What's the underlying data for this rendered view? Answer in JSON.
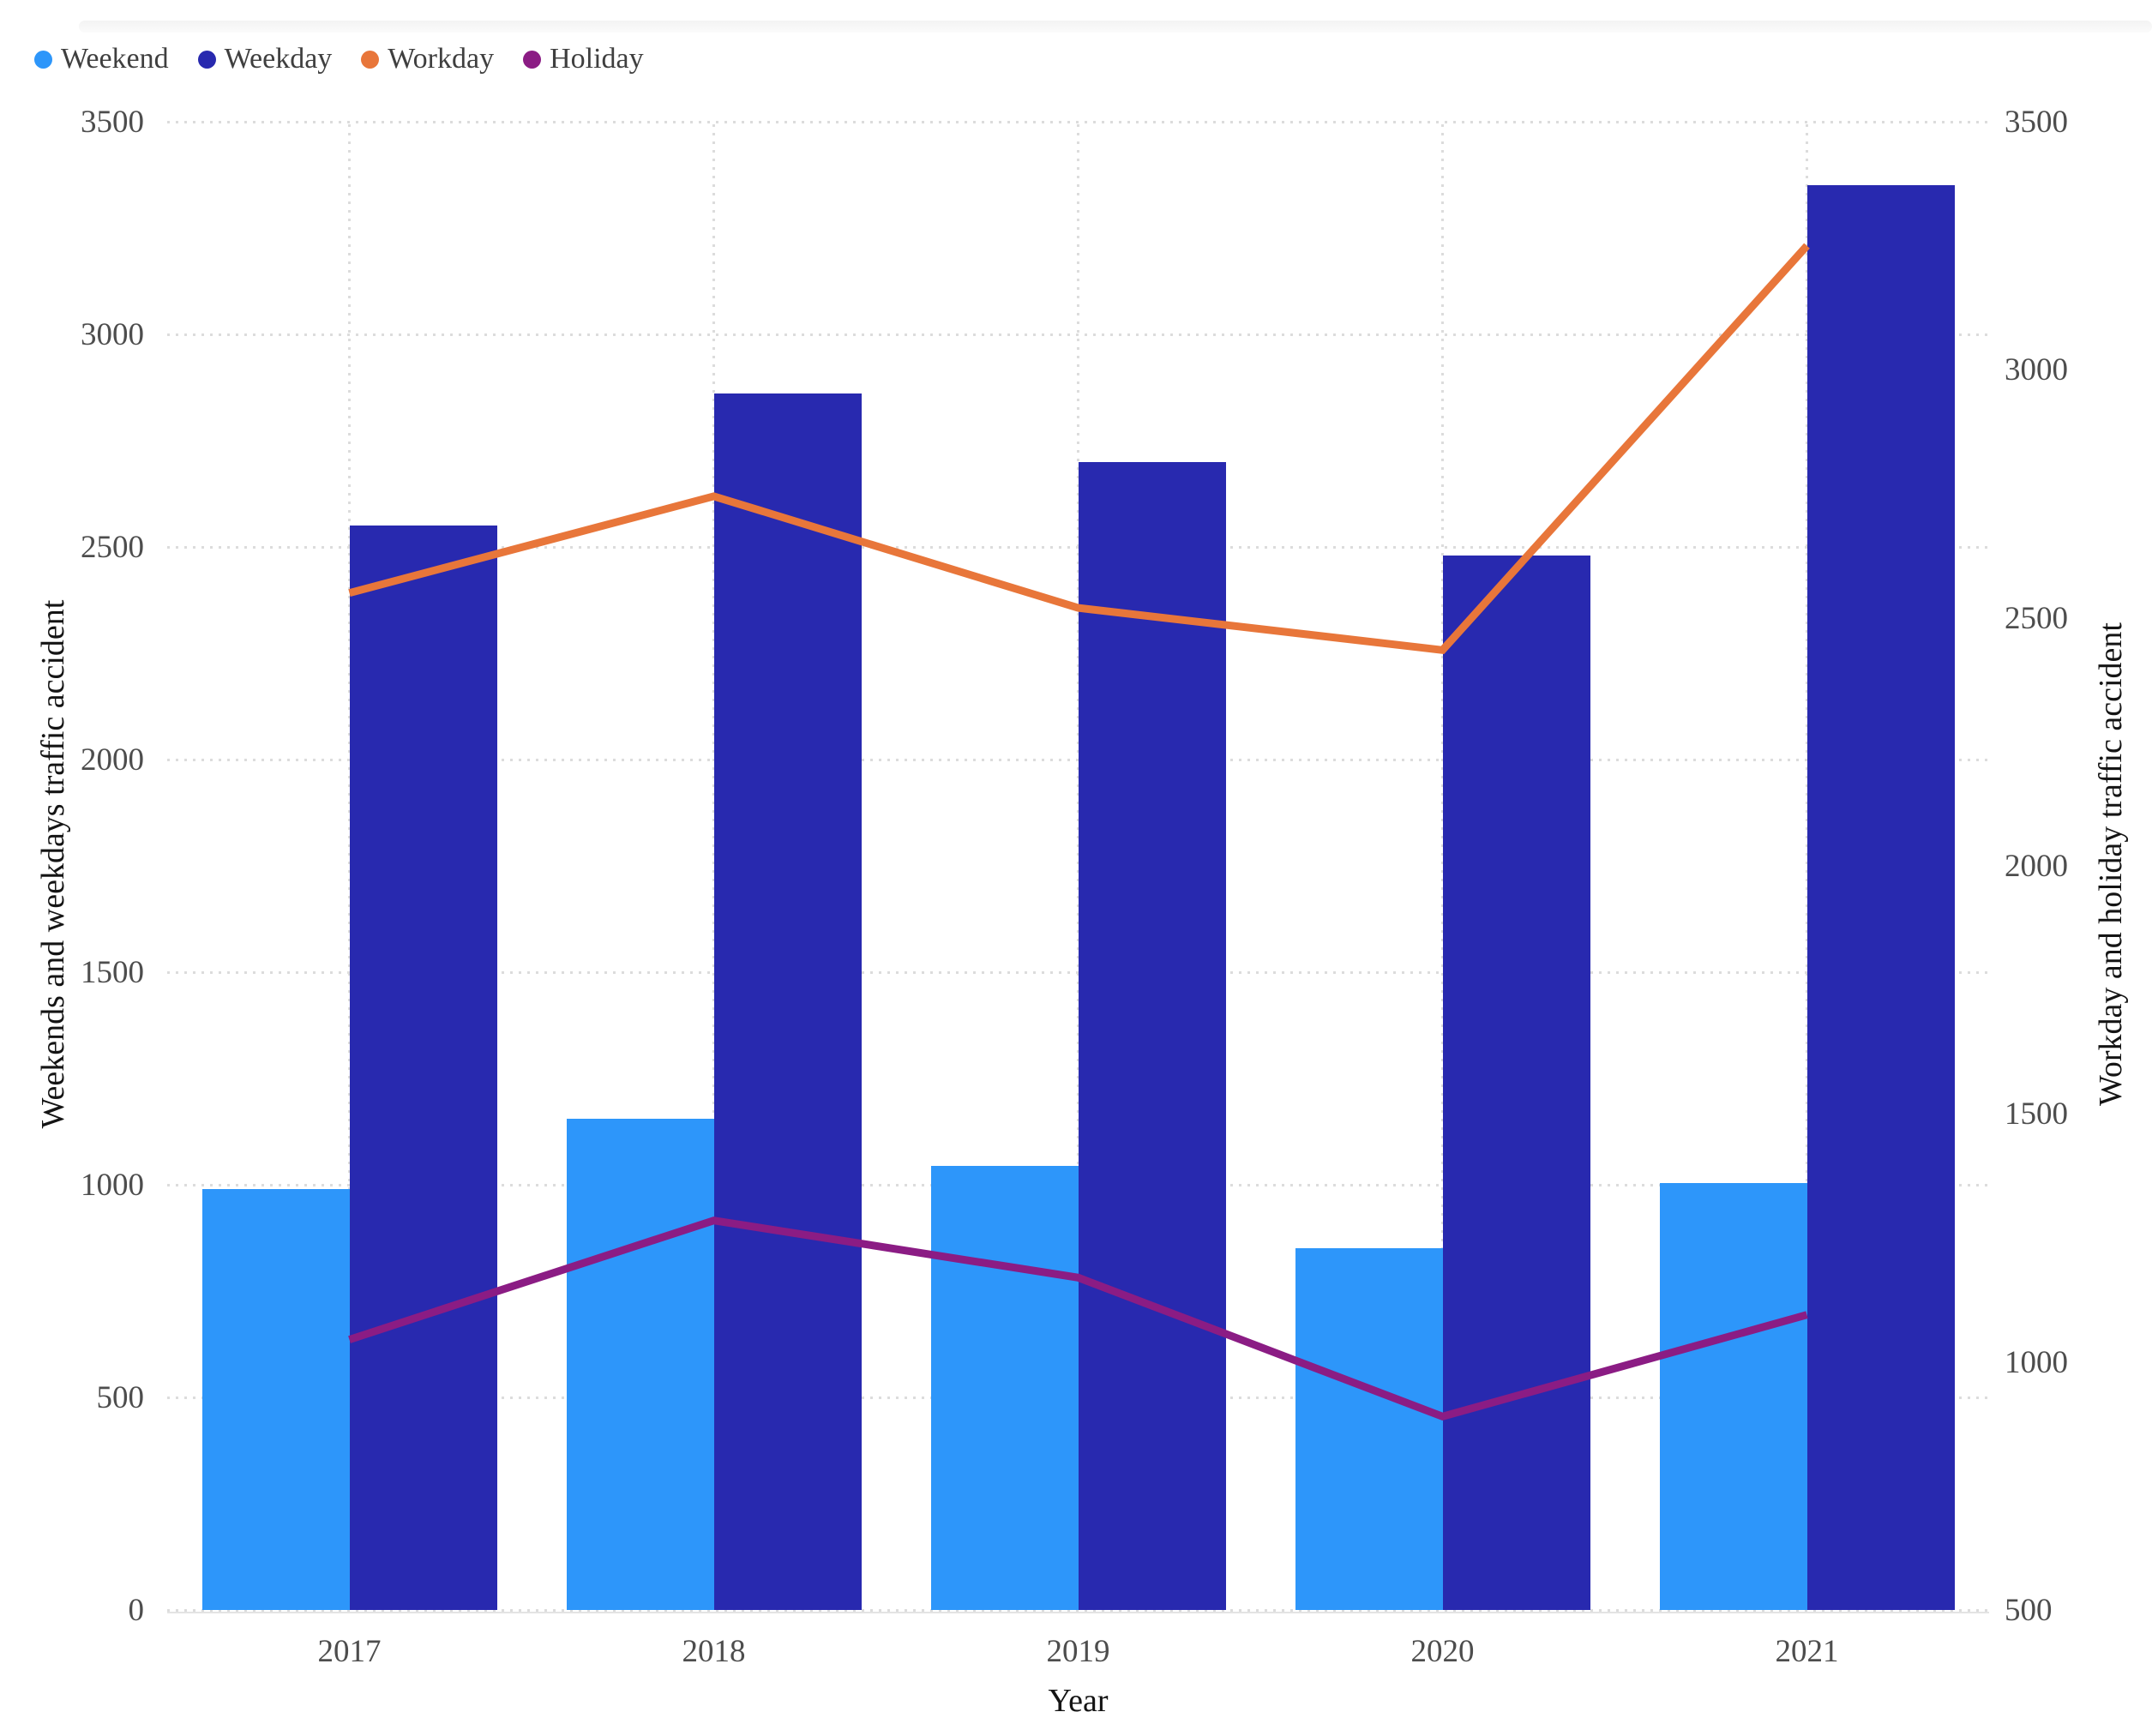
{
  "legend": {
    "items": [
      {
        "label": "Weekend",
        "color": "#2D96FA"
      },
      {
        "label": "Weekday",
        "color": "#2829AF"
      },
      {
        "label": "Workday",
        "color": "#E8763A"
      },
      {
        "label": "Holiday",
        "color": "#8B1C84"
      }
    ]
  },
  "chart_data": {
    "type": "bar",
    "subtype": "dual-axis bar+line combo",
    "categories": [
      "2017",
      "2018",
      "2019",
      "2020",
      "2021"
    ],
    "series": [
      {
        "name": "Weekend",
        "type": "bar",
        "axis": "left",
        "color": "#2D96FA",
        "values": [
          990,
          1155,
          1045,
          850,
          1005
        ]
      },
      {
        "name": "Weekday",
        "type": "bar",
        "axis": "left",
        "color": "#2829AF",
        "values": [
          2550,
          2860,
          2700,
          2480,
          3350
        ]
      },
      {
        "name": "Workday",
        "type": "line",
        "axis": "right",
        "color": "#E8763A",
        "values": [
          2550,
          2745,
          2520,
          2435,
          3250
        ]
      },
      {
        "name": "Holiday",
        "type": "line",
        "axis": "right",
        "color": "#8B1C84",
        "values": [
          1045,
          1285,
          1170,
          890,
          1095
        ]
      }
    ],
    "title": "",
    "xlabel": "Year",
    "left_axis": {
      "title": "Weekends and weekdays traffic accident",
      "min": 0,
      "max": 3500,
      "ticks": [
        0,
        500,
        1000,
        1500,
        2000,
        2500,
        3000,
        3500
      ]
    },
    "right_axis": {
      "title": "Workday and holiday traffic accident",
      "min": 500,
      "max": 3500,
      "ticks": [
        500,
        1000,
        1500,
        2000,
        2500,
        3000,
        3500
      ]
    },
    "grid": true,
    "gridline_style": "dotted",
    "legend_position": "top-left"
  }
}
